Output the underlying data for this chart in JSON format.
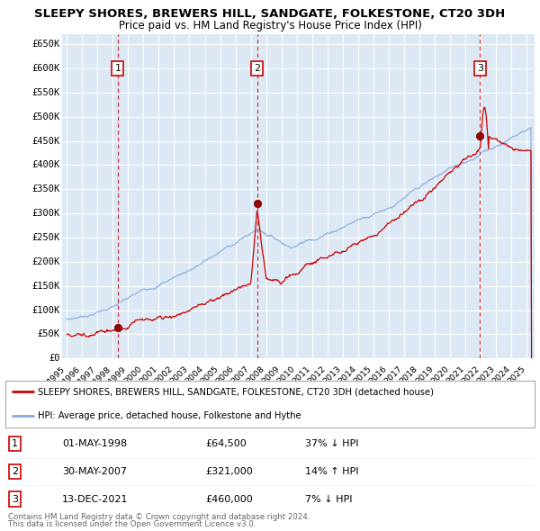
{
  "title1": "SLEEPY SHORES, BREWERS HILL, SANDGATE, FOLKESTONE, CT20 3DH",
  "title2": "Price paid vs. HM Land Registry's House Price Index (HPI)",
  "yticks": [
    0,
    50000,
    100000,
    150000,
    200000,
    250000,
    300000,
    350000,
    400000,
    450000,
    500000,
    550000,
    600000,
    650000
  ],
  "ytick_labels": [
    "£0",
    "£50K",
    "£100K",
    "£150K",
    "£200K",
    "£250K",
    "£300K",
    "£350K",
    "£400K",
    "£450K",
    "£500K",
    "£550K",
    "£600K",
    "£650K"
  ],
  "ylim": [
    0,
    670000
  ],
  "xlim_start": 1994.7,
  "xlim_end": 2025.5,
  "background_color": "#dce9f5",
  "grid_color": "#ffffff",
  "sale_color": "#cc0000",
  "hpi_color": "#88aadd",
  "transactions": [
    {
      "num": 1,
      "date_x": 1998.33,
      "price": 64500,
      "pct": "37%",
      "dir": "↓",
      "label": "01-MAY-1998",
      "price_str": "£64,500"
    },
    {
      "num": 2,
      "date_x": 2007.41,
      "price": 321000,
      "pct": "14%",
      "dir": "↑",
      "label": "30-MAY-2007",
      "price_str": "£321,000"
    },
    {
      "num": 3,
      "date_x": 2021.95,
      "price": 460000,
      "pct": "7%",
      "dir": "↓",
      "label": "13-DEC-2021",
      "price_str": "£460,000"
    }
  ],
  "legend_sale_label": "SLEEPY SHORES, BREWERS HILL, SANDGATE, FOLKESTONE, CT20 3DH (detached house)",
  "legend_hpi_label": "HPI: Average price, detached house, Folkestone and Hythe",
  "footer1": "Contains HM Land Registry data © Crown copyright and database right 2024.",
  "footer2": "This data is licensed under the Open Government Licence v3.0.",
  "xtick_years": [
    1995,
    1996,
    1997,
    1998,
    1999,
    2000,
    2001,
    2002,
    2003,
    2004,
    2005,
    2006,
    2007,
    2008,
    2009,
    2010,
    2011,
    2012,
    2013,
    2014,
    2015,
    2016,
    2017,
    2018,
    2019,
    2020,
    2021,
    2022,
    2023,
    2024,
    2025
  ]
}
